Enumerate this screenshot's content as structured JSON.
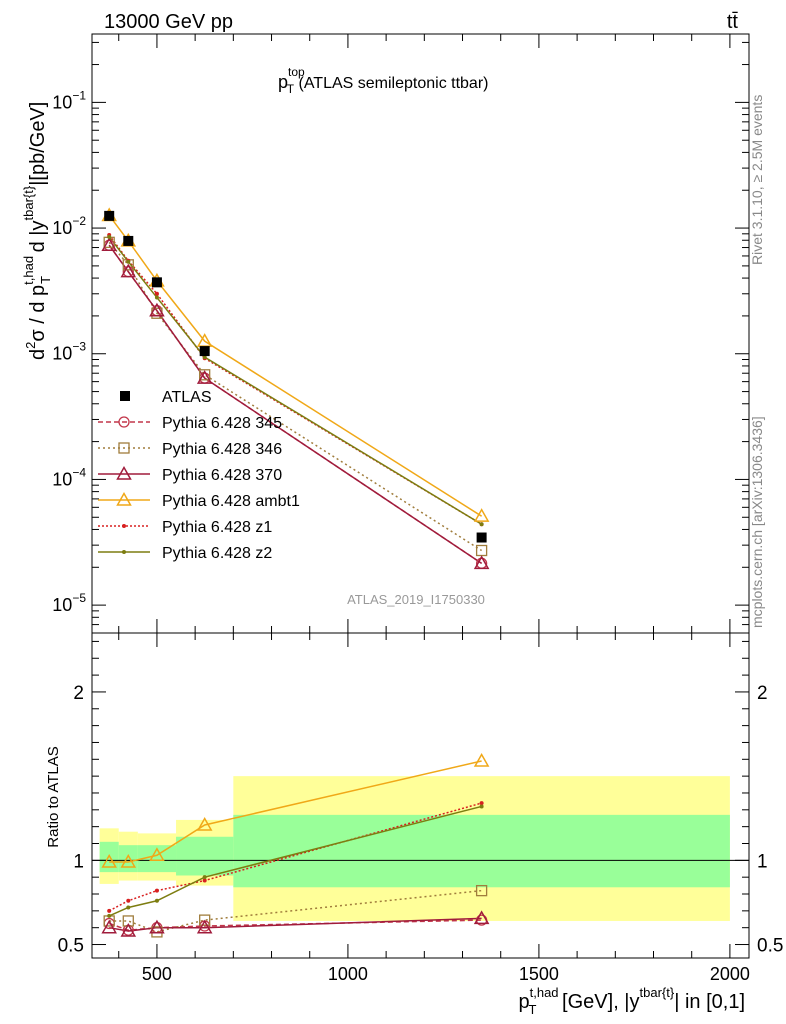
{
  "header": {
    "left": "13000 GeV pp",
    "right": "tt̄"
  },
  "side_labels": {
    "rivet": "Rivet 3.1.10, ≥ 2.5M events",
    "mcplots": "mcplots.cern.ch [arXiv:1306.3436]"
  },
  "watermark": "ATLAS_2019_I1750330",
  "chart_data": [
    {
      "type": "line",
      "title_main": "p",
      "title_sup": "top",
      "title_sub": "T",
      "title_rest": " (ATLAS semileptonic ttbar)",
      "ylabel": {
        "p1": "d",
        "p1_sup": "2",
        "p2": "σ  /  d p",
        "p2_sup": "t,had",
        "p2_sub": "T",
        "p3": " d |y",
        "p3_sup": "tbar{t}",
        "p4": "|[pb/GeV]"
      },
      "yscale": "log",
      "ylim": [
        6e-06,
        0.35
      ],
      "xlim": [
        330,
        2050
      ],
      "y_tick_labels": [
        {
          "base": "10",
          "exp": "−1",
          "value": 0.1
        },
        {
          "base": "10",
          "exp": "−2",
          "value": 0.01
        },
        {
          "base": "10",
          "exp": "−3",
          "value": 0.001
        },
        {
          "base": "10",
          "exp": "−4",
          "value": 0.0001
        },
        {
          "base": "10",
          "exp": "−5",
          "value": 1e-05
        }
      ],
      "x": [
        375,
        425,
        500,
        625,
        1350
      ],
      "data": {
        "name": "ATLAS",
        "values": [
          0.0125,
          0.0079,
          0.0037,
          0.00105,
          3.45e-05
        ]
      },
      "series": [
        {
          "name": "Pythia 6.428 345",
          "color": "#c2364a",
          "dash": "5,3",
          "marker": "circle",
          "values": [
            0.0073,
            0.0045,
            0.0022,
            0.00064,
            2.15e-05
          ]
        },
        {
          "name": "Pythia 6.428 346",
          "color": "#a07d3c",
          "dash": "2,3",
          "marker": "square",
          "values": [
            0.0077,
            0.0051,
            0.0021,
            0.00068,
            2.72e-05
          ]
        },
        {
          "name": "Pythia 6.428 370",
          "color": "#a01c3c",
          "dash": "",
          "marker": "triangle",
          "values": [
            0.0073,
            0.0045,
            0.0022,
            0.00064,
            2.15e-05
          ]
        },
        {
          "name": "Pythia 6.428 ambt1",
          "color": "#f0a818",
          "dash": "",
          "marker": "triangle",
          "values": [
            0.0126,
            0.0079,
            0.0038,
            0.00126,
            5.1e-05
          ]
        },
        {
          "name": "Pythia 6.428 z1",
          "color": "#d82020",
          "dash": "2,2",
          "marker": "dot",
          "values": [
            0.0088,
            0.0055,
            0.003,
            0.00092,
            4.4e-05
          ]
        },
        {
          "name": "Pythia 6.428 z2",
          "color": "#7d7d10",
          "dash": "",
          "marker": "dot",
          "values": [
            0.0085,
            0.0054,
            0.0028,
            0.00094,
            4.4e-05
          ]
        }
      ]
    },
    {
      "type": "line",
      "ylabel": "Ratio to ATLAS",
      "xlabel": {
        "p1": "p",
        "p1_sup": "t,had",
        "p1_sub": "T",
        "p2": " [GeV], |y",
        "p2_sup": "tbar{t}",
        "p3": "| in [0,1]"
      },
      "ylim": [
        0.42,
        2.35
      ],
      "xlim": [
        330,
        2050
      ],
      "y_ticks": [
        0.5,
        1,
        2
      ],
      "y_tick_labels": [
        "0.5",
        "1",
        "2"
      ],
      "x_ticks": [
        500,
        1000,
        1500,
        2000
      ],
      "x_tick_labels": [
        "500",
        "1000",
        "1500",
        "2000"
      ],
      "bands": [
        {
          "x0": 350,
          "x1": 400,
          "inner": [
            0.93,
            1.11
          ],
          "outer": [
            0.86,
            1.19
          ]
        },
        {
          "x0": 400,
          "x1": 450,
          "inner": [
            0.93,
            1.09
          ],
          "outer": [
            0.88,
            1.17
          ]
        },
        {
          "x0": 450,
          "x1": 550,
          "inner": [
            0.93,
            1.09
          ],
          "outer": [
            0.88,
            1.16
          ]
        },
        {
          "x0": 550,
          "x1": 700,
          "inner": [
            0.91,
            1.14
          ],
          "outer": [
            0.85,
            1.24
          ]
        },
        {
          "x0": 700,
          "x1": 2000,
          "inner": [
            0.84,
            1.27
          ],
          "outer": [
            0.64,
            1.5
          ]
        }
      ],
      "x": [
        375,
        425,
        500,
        625,
        1350
      ],
      "series": [
        {
          "name": "Pythia 6.428 345",
          "color": "#c2364a",
          "dash": "5,3",
          "marker": "circle",
          "values": [
            0.625,
            0.585,
            0.6,
            0.61,
            0.645
          ]
        },
        {
          "name": "Pythia 6.428 346",
          "color": "#a07d3c",
          "dash": "2,3",
          "marker": "square",
          "values": [
            0.64,
            0.64,
            0.575,
            0.645,
            0.82
          ]
        },
        {
          "name": "Pythia 6.428 370",
          "color": "#a01c3c",
          "dash": "",
          "marker": "triangle",
          "values": [
            0.6,
            0.58,
            0.6,
            0.6,
            0.655
          ]
        },
        {
          "name": "Pythia 6.428 ambt1",
          "color": "#f0a818",
          "dash": "",
          "marker": "triangle",
          "values": [
            0.99,
            0.99,
            1.03,
            1.21,
            1.59
          ]
        },
        {
          "name": "Pythia 6.428 z1",
          "color": "#d82020",
          "dash": "2,2",
          "marker": "dot",
          "values": [
            0.7,
            0.76,
            0.82,
            0.88,
            1.34
          ]
        },
        {
          "name": "Pythia 6.428 z2",
          "color": "#7d7d10",
          "dash": "",
          "marker": "dot",
          "values": [
            0.67,
            0.72,
            0.76,
            0.9,
            1.32
          ]
        }
      ]
    }
  ]
}
